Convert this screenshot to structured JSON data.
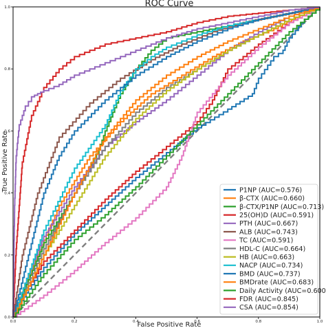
{
  "chart_data": {
    "type": "line",
    "title": "ROC Curve",
    "xlabel": "False Positive Rate",
    "ylabel": "True Positive Rate",
    "xlim": [
      0,
      1
    ],
    "ylim": [
      0,
      1
    ],
    "x_ticks": [
      "0.0",
      "0.2",
      "0.4",
      "0.6",
      "0.8",
      "1.0"
    ],
    "y_ticks": [
      "0.0",
      "0.2",
      "0.4",
      "0.6",
      "0.8",
      "1.0"
    ],
    "grid": false,
    "legend_position": "lower-right",
    "chance_line": {
      "x": [
        0,
        1
      ],
      "y": [
        0,
        1
      ],
      "color": "#7f7f7f",
      "style": "dashed"
    },
    "series": [
      {
        "name": "P1NP (AUC=0.576)",
        "color": "#1f77b4",
        "x": [
          0,
          0.02,
          0.05,
          0.1,
          0.2,
          0.3,
          0.4,
          0.5,
          0.6,
          0.7,
          0.78,
          0.8,
          0.85,
          0.88,
          0.9,
          0.95,
          1.0
        ],
        "y": [
          0,
          0.04,
          0.09,
          0.16,
          0.27,
          0.36,
          0.45,
          0.53,
          0.61,
          0.67,
          0.72,
          0.77,
          0.84,
          0.86,
          0.9,
          0.96,
          1.0
        ]
      },
      {
        "name": "β-CTX (AUC=0.660)",
        "color": "#ff7f0e",
        "x": [
          0,
          0.03,
          0.08,
          0.15,
          0.25,
          0.35,
          0.45,
          0.55,
          0.65,
          0.75,
          0.85,
          0.95,
          1.0
        ],
        "y": [
          0,
          0.08,
          0.2,
          0.36,
          0.52,
          0.63,
          0.72,
          0.78,
          0.84,
          0.89,
          0.93,
          0.98,
          1.0
        ]
      },
      {
        "name": "β-CTX/P1NP (AUC=0.713)",
        "color": "#2ca02c",
        "x": [
          0,
          0.05,
          0.1,
          0.2,
          0.28,
          0.3,
          0.35,
          0.4,
          0.45,
          0.5,
          0.6,
          0.7,
          0.8,
          0.9,
          1.0
        ],
        "y": [
          0,
          0.12,
          0.24,
          0.4,
          0.54,
          0.6,
          0.72,
          0.8,
          0.86,
          0.9,
          0.92,
          0.94,
          0.96,
          0.98,
          1.0
        ]
      },
      {
        "name": "25(OH)D (AUC=0.591)",
        "color": "#d62728",
        "x": [
          0,
          0.05,
          0.1,
          0.2,
          0.3,
          0.4,
          0.5,
          0.6,
          0.65,
          0.7,
          0.8,
          0.9,
          1.0
        ],
        "y": [
          0,
          0.1,
          0.18,
          0.28,
          0.38,
          0.47,
          0.55,
          0.63,
          0.7,
          0.8,
          0.88,
          0.95,
          1.0
        ]
      },
      {
        "name": "PTH (AUC=0.667)",
        "color": "#9467bd",
        "x": [
          0,
          0.05,
          0.1,
          0.2,
          0.3,
          0.4,
          0.5,
          0.6,
          0.7,
          0.8,
          0.9,
          1.0
        ],
        "y": [
          0,
          0.14,
          0.26,
          0.42,
          0.55,
          0.63,
          0.7,
          0.78,
          0.86,
          0.92,
          0.97,
          1.0
        ]
      },
      {
        "name": "ALB (AUC=0.743)",
        "color": "#8c564b",
        "x": [
          0,
          0.03,
          0.08,
          0.15,
          0.25,
          0.35,
          0.45,
          0.55,
          0.65,
          0.75,
          0.85,
          0.95,
          1.0
        ],
        "y": [
          0,
          0.2,
          0.4,
          0.58,
          0.69,
          0.77,
          0.83,
          0.88,
          0.92,
          0.95,
          0.97,
          0.99,
          1.0
        ]
      },
      {
        "name": "TC (AUC=0.591)",
        "color": "#e377c2",
        "x": [
          0,
          0.1,
          0.2,
          0.3,
          0.4,
          0.5,
          0.55,
          0.6,
          0.7,
          0.8,
          0.9,
          1.0
        ],
        "y": [
          0,
          0.07,
          0.15,
          0.24,
          0.32,
          0.42,
          0.52,
          0.66,
          0.78,
          0.87,
          0.95,
          1.0
        ]
      },
      {
        "name": "HDL-C (AUC=0.664)",
        "color": "#7f7f7f",
        "x": [
          0,
          0.05,
          0.1,
          0.2,
          0.3,
          0.4,
          0.5,
          0.6,
          0.7,
          0.8,
          0.9,
          1.0
        ],
        "y": [
          0,
          0.11,
          0.22,
          0.4,
          0.55,
          0.66,
          0.74,
          0.8,
          0.86,
          0.91,
          0.96,
          1.0
        ]
      },
      {
        "name": "HB (AUC=0.663)",
        "color": "#bcbd22",
        "x": [
          0,
          0.05,
          0.1,
          0.2,
          0.3,
          0.4,
          0.5,
          0.6,
          0.7,
          0.8,
          0.9,
          1.0
        ],
        "y": [
          0,
          0.1,
          0.2,
          0.36,
          0.52,
          0.64,
          0.73,
          0.8,
          0.86,
          0.91,
          0.96,
          1.0
        ]
      },
      {
        "name": "NACP (AUC=0.734)",
        "color": "#17becf",
        "x": [
          0,
          0.05,
          0.1,
          0.2,
          0.3,
          0.35,
          0.4,
          0.45,
          0.5,
          0.6,
          0.7,
          0.8,
          0.9,
          1.0
        ],
        "y": [
          0,
          0.14,
          0.28,
          0.48,
          0.62,
          0.73,
          0.8,
          0.84,
          0.87,
          0.91,
          0.94,
          0.96,
          0.98,
          1.0
        ]
      },
      {
        "name": "BMD (AUC=0.737)",
        "color": "#1f77b4",
        "x": [
          0,
          0.05,
          0.1,
          0.15,
          0.2,
          0.3,
          0.4,
          0.5,
          0.6,
          0.7,
          0.8,
          0.9,
          1.0
        ],
        "y": [
          0,
          0.2,
          0.4,
          0.52,
          0.6,
          0.7,
          0.78,
          0.84,
          0.89,
          0.93,
          0.96,
          0.98,
          1.0
        ]
      },
      {
        "name": "BMDrate (AUC=0.683)",
        "color": "#ff7f0e",
        "x": [
          0,
          0.05,
          0.1,
          0.2,
          0.3,
          0.4,
          0.5,
          0.6,
          0.7,
          0.8,
          0.9,
          1.0
        ],
        "y": [
          0,
          0.1,
          0.2,
          0.4,
          0.58,
          0.7,
          0.78,
          0.84,
          0.89,
          0.93,
          0.97,
          1.0
        ]
      },
      {
        "name": "Daily Activity (AUC=0.600)",
        "color": "#2ca02c",
        "x": [
          0,
          0.1,
          0.2,
          0.3,
          0.4,
          0.5,
          0.6,
          0.7,
          0.8,
          0.9,
          1.0
        ],
        "y": [
          0,
          0.14,
          0.25,
          0.33,
          0.42,
          0.52,
          0.62,
          0.72,
          0.82,
          0.92,
          1.0
        ]
      },
      {
        "name": "FDR (AUC=0.845)",
        "color": "#d62728",
        "x": [
          0,
          0.01,
          0.03,
          0.06,
          0.1,
          0.15,
          0.2,
          0.25,
          0.3,
          0.4,
          0.5,
          0.6,
          0.7,
          0.8,
          0.9,
          1.0
        ],
        "y": [
          0,
          0.22,
          0.5,
          0.65,
          0.74,
          0.8,
          0.84,
          0.86,
          0.88,
          0.9,
          0.92,
          0.95,
          0.97,
          0.98,
          0.99,
          1.0
        ]
      },
      {
        "name": "CSA (AUC=0.854)",
        "color": "#9467bd",
        "x": [
          0,
          0.005,
          0.01,
          0.02,
          0.04,
          0.06,
          0.08,
          0.1,
          0.15,
          0.2,
          0.3,
          0.4,
          0.5,
          0.6,
          0.7,
          0.8,
          0.9,
          1.0
        ],
        "y": [
          0,
          0.36,
          0.52,
          0.62,
          0.68,
          0.71,
          0.72,
          0.73,
          0.75,
          0.78,
          0.82,
          0.86,
          0.9,
          0.93,
          0.95,
          0.97,
          0.99,
          1.0
        ]
      }
    ]
  }
}
